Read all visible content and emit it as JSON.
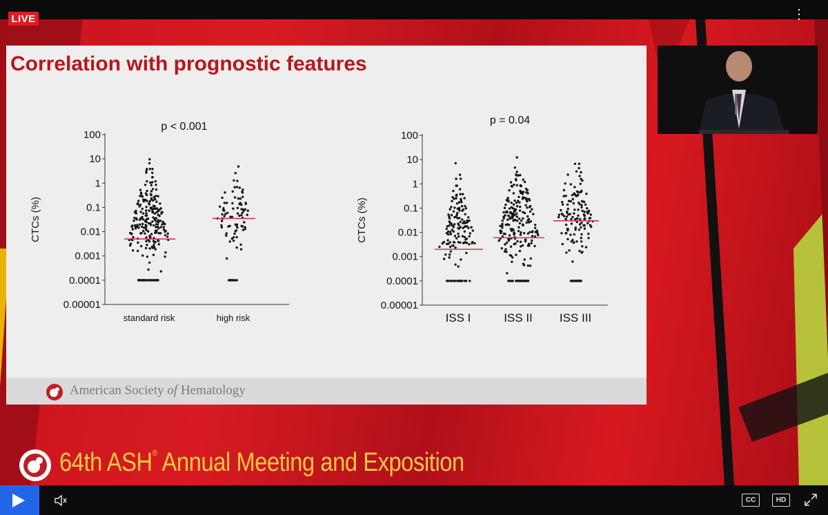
{
  "player": {
    "live_label": "LIVE",
    "more_icon": "vertical-ellipsis-icon",
    "play_icon": "play-icon",
    "volume_icon": "speaker-icon",
    "cc_label": "CC",
    "hd_label": "HD",
    "fullscreen_icon": "expand-icon",
    "accent": "#2266e8"
  },
  "slide": {
    "title": "Correlation with prognostic features",
    "footer_org_pre": "American Society ",
    "footer_org_of": "of",
    "footer_org_post": " Hematology"
  },
  "banner": {
    "meeting_pre": "64th ASH",
    "meeting_reg": "®",
    "meeting_post": " Annual Meeting and Exposition"
  },
  "chart_data": [
    {
      "type": "scatter",
      "title": "p < 0.001",
      "ylabel": "CTCs (%)",
      "yscale": "log",
      "ylim": [
        1e-05,
        100
      ],
      "yticks": [
        "100",
        "10",
        "1",
        "0.1",
        "0.01",
        "0.001",
        "0.0001",
        "0.00001"
      ],
      "categories": [
        "standard risk",
        "high risk"
      ],
      "medians": [
        0.005,
        0.035
      ],
      "ranges": [
        [
          0.0001,
          40
        ],
        [
          0.0001,
          50
        ]
      ],
      "median_color": "#d8334a"
    },
    {
      "type": "scatter",
      "title": "p = 0.04",
      "ylabel": "CTCs (%)",
      "yscale": "log",
      "ylim": [
        1e-05,
        100
      ],
      "yticks": [
        "100",
        "10",
        "1",
        "0.1",
        "0.01",
        "0.001",
        "0.0001",
        "0.00001"
      ],
      "categories": [
        "ISS I",
        "ISS II",
        "ISS III"
      ],
      "medians": [
        0.002,
        0.006,
        0.03
      ],
      "ranges": [
        [
          0.0001,
          20
        ],
        [
          0.0001,
          60
        ],
        [
          0.0001,
          60
        ]
      ],
      "median_color": "#d8334a"
    }
  ]
}
